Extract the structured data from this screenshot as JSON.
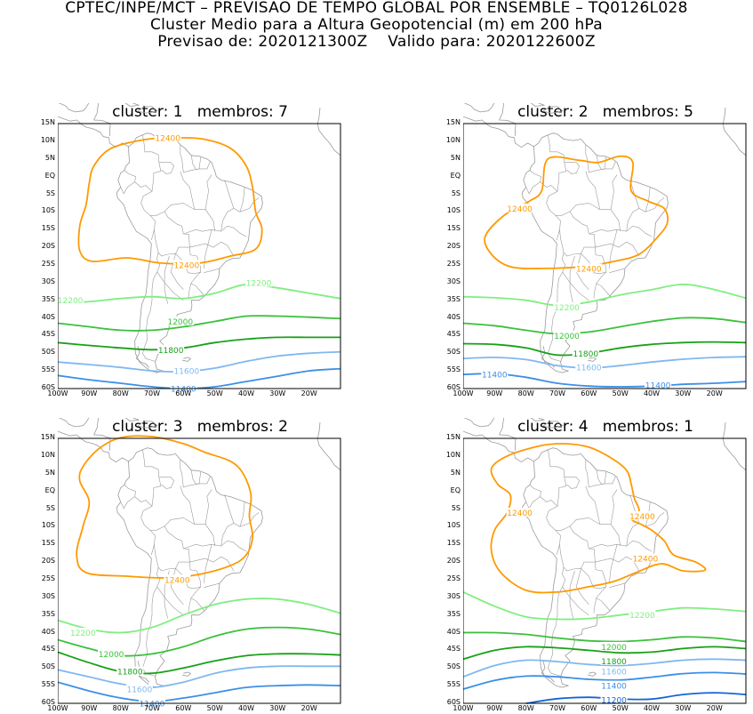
{
  "header": {
    "line1": "CPTEC/INPE/MCT – PREVISAO DE TEMPO GLOBAL POR ENSEMBLE – TQ0126L028",
    "line2": "Cluster Medio para a Altura Geopotencial (m) em 200 hPa",
    "line3": "Previsao de: 2020121300Z    Valido para: 2020122600Z"
  },
  "axes": {
    "lat_labels": [
      "15N",
      "10N",
      "5N",
      "EQ",
      "5S",
      "10S",
      "15S",
      "20S",
      "25S",
      "30S",
      "35S",
      "40S",
      "45S",
      "50S",
      "55S",
      "60S"
    ],
    "lon_labels": [
      "100W",
      "90W",
      "80W",
      "70W",
      "60W",
      "50W",
      "40W",
      "30W",
      "20W"
    ]
  },
  "colors": {
    "12400": "#ff9900",
    "12200": "#80ee80",
    "12000": "#3cc03c",
    "11800": "#17a117",
    "11600": "#80b8f0",
    "11400": "#3c8fe6",
    "11200": "#1565d6",
    "coast": "#9a9a9a"
  },
  "panels": [
    {
      "title": "cluster: 1   membros: 7",
      "labels": [
        {
          "text": "12400",
          "lon": -65,
          "lat": 11,
          "color": "12400"
        },
        {
          "text": "12400",
          "lon": -59,
          "lat": -25,
          "color": "12400"
        },
        {
          "text": "12200",
          "lon": -96,
          "lat": -35,
          "color": "12200"
        },
        {
          "text": "12200",
          "lon": -36,
          "lat": -30,
          "color": "12200"
        },
        {
          "text": "12000",
          "lon": -61,
          "lat": -41,
          "color": "12000"
        },
        {
          "text": "11800",
          "lon": -64,
          "lat": -49,
          "color": "11800"
        },
        {
          "text": "11600",
          "lon": -59,
          "lat": -55,
          "color": "11600"
        },
        {
          "text": "11400",
          "lon": -60,
          "lat": -60,
          "color": "11400"
        }
      ]
    },
    {
      "title": "cluster: 2   membros: 5",
      "labels": [
        {
          "text": "12400",
          "lon": -82,
          "lat": -9,
          "color": "12400"
        },
        {
          "text": "12400",
          "lon": -60,
          "lat": -26,
          "color": "12400"
        },
        {
          "text": "12200",
          "lon": -67,
          "lat": -37,
          "color": "12200"
        },
        {
          "text": "12000",
          "lon": -67,
          "lat": -45,
          "color": "12000"
        },
        {
          "text": "11800",
          "lon": -61,
          "lat": -50,
          "color": "11800"
        },
        {
          "text": "11600",
          "lon": -60,
          "lat": -54,
          "color": "11600"
        },
        {
          "text": "11400",
          "lon": -90,
          "lat": -56,
          "color": "11400"
        },
        {
          "text": "11400",
          "lon": -38,
          "lat": -59,
          "color": "11400"
        }
      ]
    },
    {
      "title": "cluster: 3   membros: 2",
      "labels": [
        {
          "text": "12400",
          "lon": -62,
          "lat": -25,
          "color": "12400"
        },
        {
          "text": "12200",
          "lon": -92,
          "lat": -40,
          "color": "12200"
        },
        {
          "text": "12000",
          "lon": -83,
          "lat": -46,
          "color": "12000"
        },
        {
          "text": "11800",
          "lon": -77,
          "lat": -51,
          "color": "11800"
        },
        {
          "text": "11600",
          "lon": -74,
          "lat": -56,
          "color": "11600"
        },
        {
          "text": "11400",
          "lon": -70,
          "lat": -60,
          "color": "11400"
        }
      ]
    },
    {
      "title": "cluster: 4   membros: 1",
      "labels": [
        {
          "text": "12400",
          "lon": -82,
          "lat": -6,
          "color": "12400"
        },
        {
          "text": "12400",
          "lon": -43,
          "lat": -7,
          "color": "12400"
        },
        {
          "text": "12400",
          "lon": -42,
          "lat": -19,
          "color": "12400"
        },
        {
          "text": "12200",
          "lon": -43,
          "lat": -35,
          "color": "12200"
        },
        {
          "text": "12000",
          "lon": -52,
          "lat": -44,
          "color": "12000"
        },
        {
          "text": "11800",
          "lon": -52,
          "lat": -48,
          "color": "11800"
        },
        {
          "text": "11600",
          "lon": -52,
          "lat": -51,
          "color": "11600"
        },
        {
          "text": "11400",
          "lon": -52,
          "lat": -55,
          "color": "11400"
        },
        {
          "text": "11200",
          "lon": -52,
          "lat": -59,
          "color": "11200"
        }
      ]
    }
  ]
}
